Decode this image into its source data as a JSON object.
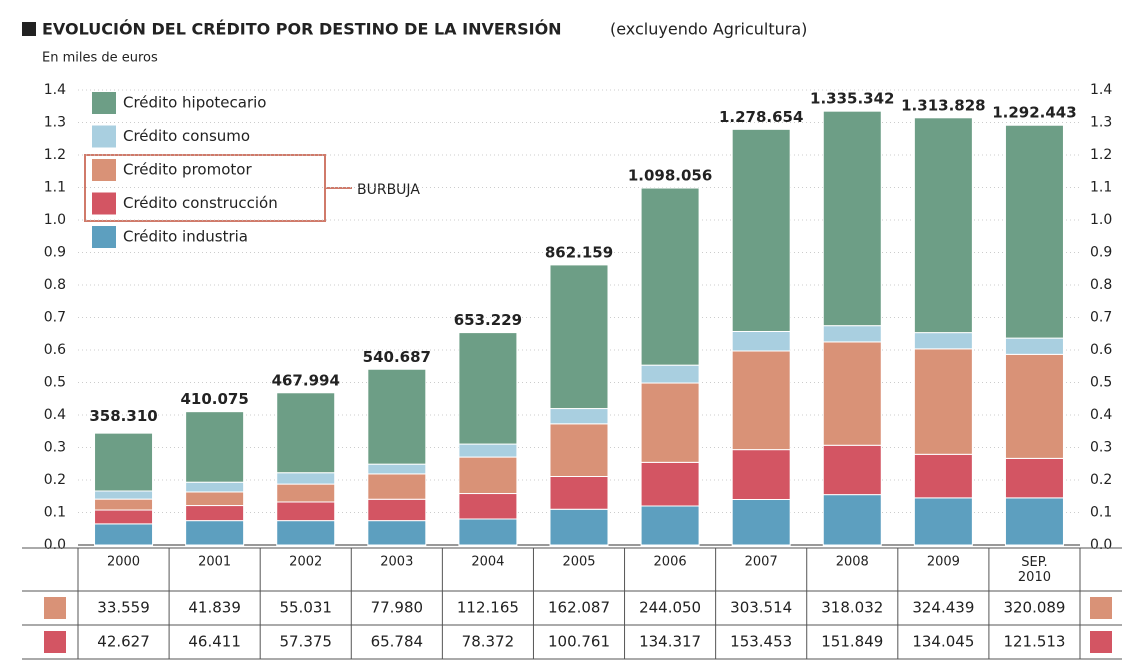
{
  "chart_data": {
    "type": "stacked-bar",
    "title": "EVOLUCIÓN DEL CRÉDITO POR DESTINO DE LA INVERSIÓN",
    "title_note": "(excluyendo Agricultura)",
    "subtitle": "En miles de euros",
    "annotation": "BURBUJA",
    "categories": [
      "2000",
      "2001",
      "2002",
      "2003",
      "2004",
      "2005",
      "2006",
      "2007",
      "2008",
      "2009",
      "SEP. 2010"
    ],
    "series": [
      {
        "name": "Crédito industria",
        "color": "#5d9fbf",
        "values": [
          0.065,
          0.075,
          0.075,
          0.075,
          0.08,
          0.11,
          0.12,
          0.14,
          0.155,
          0.145,
          0.145
        ]
      },
      {
        "name": "Crédito construcción",
        "color": "#d35563",
        "values": [
          0.042627,
          0.046411,
          0.057375,
          0.065784,
          0.078372,
          0.100761,
          0.134317,
          0.153453,
          0.151849,
          0.134045,
          0.121513
        ],
        "value_labels": [
          "42.627",
          "46.411",
          "57.375",
          "65.784",
          "78.372",
          "100.761",
          "134.317",
          "153.453",
          "151.849",
          "134.045",
          "121.513"
        ]
      },
      {
        "name": "Crédito promotor",
        "color": "#d99277",
        "values": [
          0.033559,
          0.041839,
          0.055031,
          0.07798,
          0.112165,
          0.162087,
          0.24405,
          0.303514,
          0.318032,
          0.324439,
          0.320089
        ],
        "value_labels": [
          "33.559",
          "41.839",
          "55.031",
          "77.980",
          "112.165",
          "162.087",
          "244.050",
          "303.514",
          "318.032",
          "324.439",
          "320.089"
        ]
      },
      {
        "name": "Crédito consumo",
        "color": "#a9cfe0",
        "values": [
          0.025,
          0.03,
          0.035,
          0.03,
          0.04,
          0.047,
          0.055,
          0.06,
          0.05,
          0.05,
          0.05
        ]
      },
      {
        "name": "Crédito hipotecario",
        "color": "#6d9e86",
        "values": [
          0.178,
          0.217,
          0.246,
          0.292,
          0.343,
          0.442,
          0.545,
          0.622,
          0.66,
          0.661,
          0.655
        ]
      }
    ],
    "totals": {
      "values": [
        0.35831,
        0.410075,
        0.467994,
        0.540687,
        0.653229,
        0.862159,
        1.098056,
        1.278654,
        1.335342,
        1.313828,
        1.292443
      ],
      "value_labels": [
        "358.310",
        "410.075",
        "467.994",
        "540.687",
        "653.229",
        "862.159",
        "1.098.056",
        "1.278.654",
        "1.335.342",
        "1.313.828",
        "1.292.443"
      ]
    },
    "ylim": [
      0,
      1.4
    ],
    "yticks": [
      {
        "value": 0,
        "label": "0.0"
      },
      0.1,
      0.2,
      0.3,
      0.4,
      0.5,
      0.6,
      0.7,
      0.8,
      0.9,
      {
        "value": 1,
        "label": "1.0"
      },
      1.1,
      1.2,
      1.3,
      1.4
    ],
    "grid": true
  }
}
